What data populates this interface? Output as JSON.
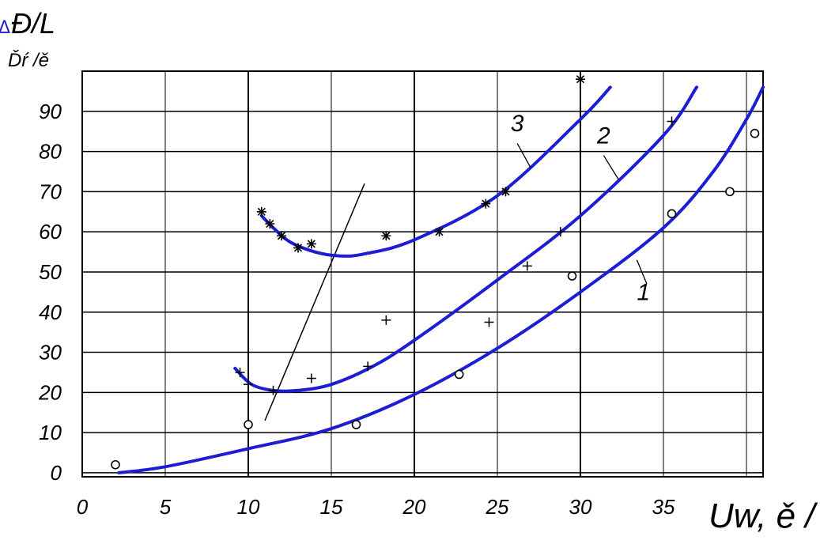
{
  "chart_data": {
    "type": "line",
    "ylabel_symbol": "Δ",
    "ylabel": "Đ/L",
    "yunit": "Ďŕ /ě",
    "xlabel": "Uw, ě /",
    "xlim": [
      0,
      41
    ],
    "ylim": [
      -1,
      100
    ],
    "xticks": [
      "0",
      "5",
      "10",
      "15",
      "20",
      "25",
      "30",
      "35"
    ],
    "xtick_values": [
      0,
      5,
      10,
      15,
      20,
      25,
      30,
      35
    ],
    "yticks": [
      "0",
      "10",
      "20",
      "30",
      "40",
      "50",
      "60",
      "70",
      "80",
      "90"
    ],
    "ytick_values": [
      0,
      10,
      20,
      30,
      40,
      50,
      60,
      70,
      80,
      90
    ],
    "grid": true,
    "curve_color": "#1d1dd4",
    "series": [
      {
        "name": "1",
        "curve": [
          [
            2.2,
            0
          ],
          [
            5,
            1.5
          ],
          [
            10,
            6
          ],
          [
            15,
            11
          ],
          [
            20,
            19.5
          ],
          [
            25,
            31
          ],
          [
            30,
            45
          ],
          [
            35,
            61
          ],
          [
            38,
            75
          ],
          [
            40,
            88
          ],
          [
            41,
            96
          ]
        ],
        "points": [
          [
            2,
            2
          ],
          [
            10,
            12
          ],
          [
            16.5,
            12
          ],
          [
            22.7,
            24.5
          ],
          [
            29.5,
            49
          ],
          [
            35.5,
            64.5
          ],
          [
            39,
            70
          ],
          [
            40.5,
            84.5
          ]
        ],
        "marker": "circle"
      },
      {
        "name": "2",
        "curve": [
          [
            9.2,
            26
          ],
          [
            10.2,
            22
          ],
          [
            11.5,
            20.5
          ],
          [
            13,
            20.5
          ],
          [
            15,
            22
          ],
          [
            17.5,
            26.5
          ],
          [
            20,
            33
          ],
          [
            25,
            48
          ],
          [
            30,
            64
          ],
          [
            35,
            84
          ],
          [
            37,
            96
          ]
        ],
        "points": [
          [
            9.5,
            25
          ],
          [
            10,
            22
          ],
          [
            11.5,
            20.5
          ],
          [
            13.8,
            23.5
          ],
          [
            17.2,
            26.5
          ],
          [
            18.3,
            38
          ],
          [
            24.5,
            37.5
          ],
          [
            26.8,
            51.5
          ],
          [
            28.8,
            60
          ],
          [
            35.5,
            87.5
          ]
        ],
        "marker": "plus"
      },
      {
        "name": "3",
        "curve": [
          [
            10.8,
            64
          ],
          [
            11.5,
            61
          ],
          [
            12.5,
            57.5
          ],
          [
            14,
            55
          ],
          [
            15.5,
            54
          ],
          [
            17,
            54.5
          ],
          [
            20,
            58
          ],
          [
            25,
            69
          ],
          [
            30,
            88
          ],
          [
            31.8,
            96
          ]
        ],
        "points": [
          [
            10.8,
            65
          ],
          [
            11.3,
            62
          ],
          [
            12,
            59
          ],
          [
            13,
            56
          ],
          [
            13.8,
            57
          ],
          [
            18.3,
            59
          ],
          [
            21.5,
            60
          ],
          [
            24.3,
            67
          ],
          [
            25.5,
            70
          ],
          [
            30,
            98
          ]
        ],
        "marker": "star"
      }
    ],
    "labels": [
      "1",
      "2",
      "3"
    ]
  }
}
